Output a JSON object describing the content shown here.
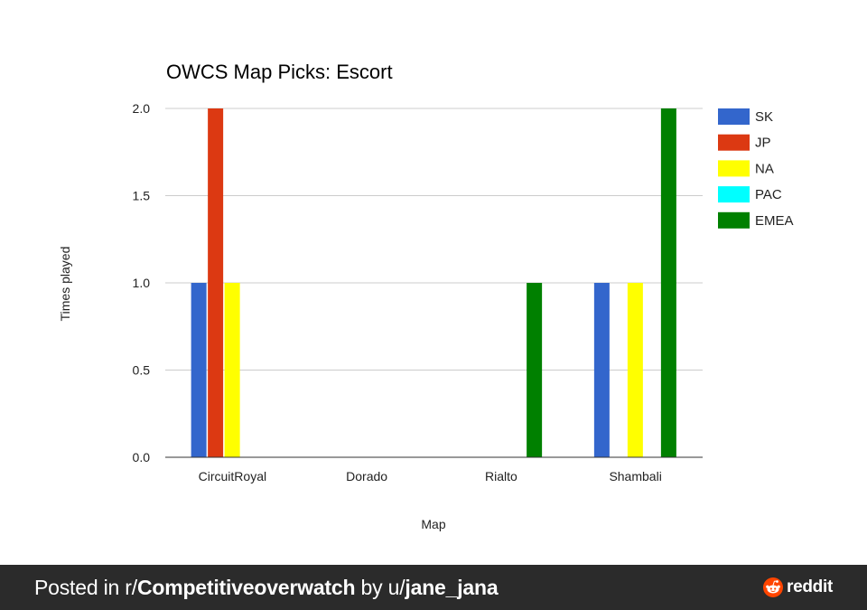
{
  "chart_data": {
    "type": "bar",
    "title": "OWCS Map Picks: Escort",
    "xlabel": "Map",
    "ylabel": "Times played",
    "categories": [
      "CircuitRoyal",
      "Dorado",
      "Rialto",
      "Shambali"
    ],
    "series": [
      {
        "name": "SK",
        "color": "#3366cc",
        "values": [
          1,
          0,
          0,
          1
        ]
      },
      {
        "name": "JP",
        "color": "#dc3912",
        "values": [
          2,
          0,
          0,
          0
        ]
      },
      {
        "name": "NA",
        "color": "#ffff00",
        "values": [
          1,
          0,
          0,
          1
        ]
      },
      {
        "name": "PAC",
        "color": "#00ffff",
        "values": [
          0,
          0,
          0,
          0
        ]
      },
      {
        "name": "EMEA",
        "color": "#008000",
        "values": [
          0,
          0,
          1,
          2
        ]
      }
    ],
    "yticks": [
      "0.0",
      "0.5",
      "1.0",
      "1.5",
      "2.0"
    ],
    "ylim": [
      0,
      2
    ],
    "grid": true,
    "legend_position": "right"
  },
  "footer": {
    "prefix": "Posted in r/",
    "subreddit": "Competitiveoverwatch",
    "by": " by u/",
    "user": "jane_jana",
    "brand": "reddit"
  }
}
